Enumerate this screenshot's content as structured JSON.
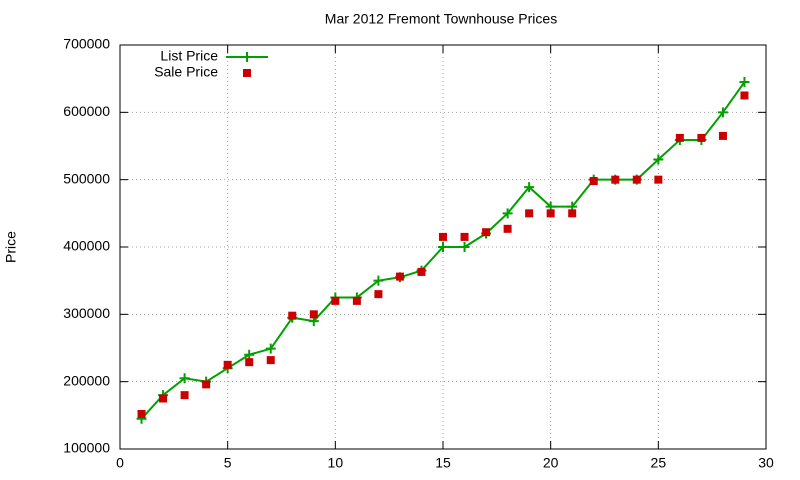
{
  "chart_data": {
    "type": "line",
    "title": "Mar 2012 Fremont Townhouse Prices",
    "y_label": "Price",
    "x": [
      1,
      2,
      3,
      4,
      5,
      6,
      7,
      8,
      9,
      10,
      11,
      12,
      13,
      14,
      15,
      16,
      17,
      18,
      19,
      20,
      21,
      22,
      23,
      24,
      25,
      26,
      27,
      28,
      29
    ],
    "series": [
      {
        "name": "List Price",
        "color": "#00a000",
        "line": true,
        "marker": "plus",
        "values": [
          145000,
          180000,
          205000,
          200000,
          220000,
          240000,
          249000,
          295000,
          290000,
          325000,
          325000,
          350000,
          355000,
          365000,
          400000,
          400000,
          420000,
          450000,
          489000,
          460000,
          460000,
          500000,
          500000,
          500000,
          530000,
          559000,
          559000,
          600000,
          645000
        ]
      },
      {
        "name": "Sale Price",
        "color": "#cc0000",
        "line": false,
        "marker": "square",
        "values": [
          152000,
          175000,
          180000,
          196000,
          225000,
          229000,
          232000,
          298000,
          300000,
          320000,
          320000,
          330000,
          356000,
          363000,
          415000,
          415000,
          422000,
          427000,
          450000,
          450000,
          450000,
          498000,
          500000,
          500000,
          500000,
          562000,
          562000,
          565000,
          625000
        ]
      }
    ],
    "xlim": [
      0,
      30
    ],
    "xticks": [
      0,
      5,
      10,
      15,
      20,
      25,
      30
    ],
    "ylim": [
      100000,
      700000
    ],
    "yticks": [
      100000,
      200000,
      300000,
      400000,
      500000,
      600000,
      700000
    ],
    "grid": true,
    "legend": "top left"
  }
}
